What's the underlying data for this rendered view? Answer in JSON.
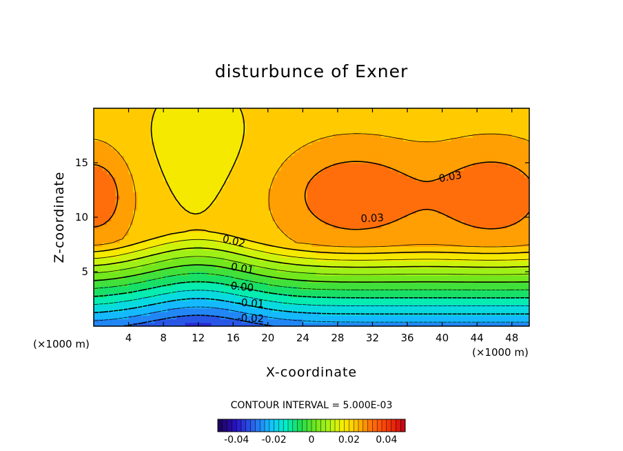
{
  "chart_data": {
    "type": "heatmap",
    "title": "disturbunce of Exner",
    "xlabel": "X-coordinate",
    "ylabel": "Z-coordinate",
    "x_unit": "(×1000 m)",
    "xlim": [
      0,
      50
    ],
    "ylim": [
      0,
      20
    ],
    "x_ticks": [
      4,
      8,
      12,
      16,
      20,
      24,
      28,
      32,
      36,
      40,
      44,
      48
    ],
    "y_ticks": [
      5,
      10,
      15
    ],
    "contour_interval_text": "CONTOUR INTERVAL = 5.000E-03",
    "contour_labels": [
      "0.03",
      "0.03",
      "0.02",
      "0.01",
      "0.00",
      "-0.01",
      "-0.02"
    ],
    "colorbar": {
      "range": [
        -0.05,
        0.05
      ],
      "ticks": [
        -0.04,
        -0.02,
        0,
        0.02,
        0.04
      ],
      "tick_labels": [
        "-0.04",
        "-0.02",
        "0",
        "0.02",
        "0.04"
      ]
    },
    "field_summary": {
      "min_value": -0.025,
      "max_value": 0.035,
      "max_locations_x": [
        0,
        30,
        46
      ],
      "max_height_z": 12,
      "min_location": [
        12,
        0
      ]
    }
  }
}
